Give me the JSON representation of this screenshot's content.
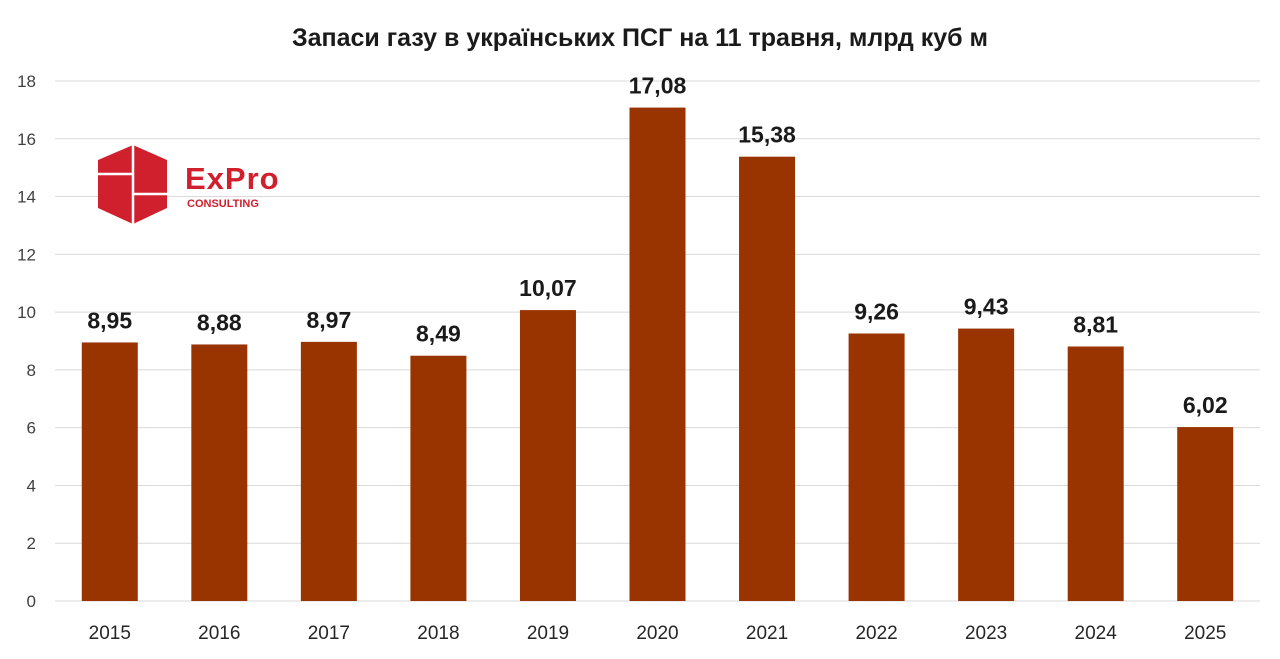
{
  "chart_data": {
    "type": "bar",
    "title": "Запаси газу в українських ПСГ на 11 травня, млрд куб м",
    "categories": [
      "2015",
      "2016",
      "2017",
      "2018",
      "2019",
      "2020",
      "2021",
      "2022",
      "2023",
      "2024",
      "2025"
    ],
    "values": [
      8.95,
      8.88,
      8.97,
      8.49,
      10.07,
      17.08,
      15.38,
      9.26,
      9.43,
      8.81,
      6.02
    ],
    "data_labels": [
      "8,95",
      "8,88",
      "8,97",
      "8,49",
      "10,07",
      "17,08",
      "15,38",
      "9,26",
      "9,43",
      "8,81",
      "6,02"
    ],
    "xlabel": "",
    "ylabel": "",
    "ylim": [
      0,
      18
    ],
    "yticks": [
      "0",
      "2",
      "4",
      "6",
      "8",
      "10",
      "12",
      "14",
      "16",
      "18"
    ],
    "grid": true,
    "bar_color": "#993300",
    "legend": "none"
  },
  "logo": {
    "name": "ExPro",
    "subtitle": "CONSULTING",
    "color": "#d0202e"
  }
}
